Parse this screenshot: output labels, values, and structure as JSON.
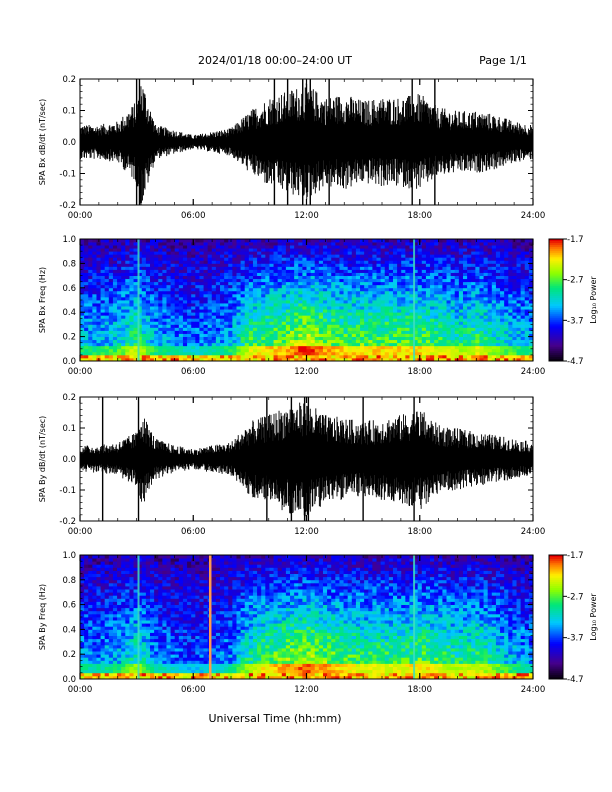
{
  "header": {
    "date_range": "2024/01/18  00:00–24:00 UT",
    "page": "Page 1/1"
  },
  "xaxis": {
    "label": "Universal Time (hh:mm)",
    "ticks": [
      "00:00",
      "06:00",
      "12:00",
      "18:00",
      "24:00"
    ],
    "range_hours": [
      0,
      24
    ]
  },
  "colorbar": {
    "label": "Log₁₀ Power",
    "ticks": [
      "-1.7",
      "-2.7",
      "-3.7",
      "-4.7"
    ],
    "range": [
      -4.7,
      -1.7
    ]
  },
  "chart_data": [
    {
      "type": "line",
      "panel": "bx_waveform",
      "ylabel": "SPA Bx dB/dt (nT/sec)",
      "ylim": [
        -0.2,
        0.2
      ],
      "yticks": [
        "0.2",
        "0.1",
        "0.0",
        "-0.1",
        "-0.2"
      ],
      "xlim": [
        0,
        24
      ],
      "envelope": {
        "x": [
          0,
          1,
          2,
          3,
          3.2,
          4,
          5,
          6,
          7,
          8,
          9,
          10,
          11,
          12,
          13,
          14,
          15,
          16,
          17,
          18,
          19,
          20,
          21,
          22,
          23,
          24
        ],
        "amplitude": [
          0.05,
          0.05,
          0.06,
          0.12,
          0.2,
          0.05,
          0.035,
          0.02,
          0.03,
          0.04,
          0.09,
          0.13,
          0.15,
          0.17,
          0.13,
          0.14,
          0.12,
          0.13,
          0.13,
          0.14,
          0.1,
          0.09,
          0.09,
          0.08,
          0.06,
          0.05
        ]
      },
      "spikes_hours": [
        3.0,
        3.15,
        10.3,
        11.0,
        11.8,
        12.2,
        13.2,
        17.6,
        18.8
      ]
    },
    {
      "type": "heatmap",
      "panel": "bx_spectrogram",
      "ylabel": "SPA Bx Freq (Hz)",
      "ylim": [
        0.0,
        1.0
      ],
      "yticks": [
        "1.0",
        "0.8",
        "0.6",
        "0.4",
        "0.2",
        "0.0"
      ],
      "xlim": [
        0,
        24
      ],
      "activity": {
        "x": [
          0,
          1,
          2,
          3,
          4,
          5,
          6,
          7,
          8,
          9,
          10,
          11,
          12,
          13,
          14,
          15,
          16,
          17,
          18,
          19,
          20,
          21,
          22,
          23,
          24
        ],
        "level": [
          0.35,
          0.35,
          0.4,
          0.55,
          0.35,
          0.3,
          0.25,
          0.3,
          0.35,
          0.55,
          0.6,
          0.65,
          0.75,
          0.65,
          0.6,
          0.6,
          0.6,
          0.6,
          0.6,
          0.55,
          0.5,
          0.55,
          0.45,
          0.4,
          0.35
        ]
      },
      "vertical_lines_hours": [
        3.1,
        17.7
      ]
    },
    {
      "type": "line",
      "panel": "by_waveform",
      "ylabel": "SPA By dB/dt (nT/sec)",
      "ylim": [
        -0.2,
        0.2
      ],
      "yticks": [
        "0.2",
        "0.1",
        "0.0",
        "-0.1",
        "-0.2"
      ],
      "xlim": [
        0,
        24
      ],
      "envelope": {
        "x": [
          0,
          1,
          2,
          3,
          3.2,
          4,
          5,
          6,
          7,
          8,
          9,
          10,
          11,
          12,
          13,
          14,
          15,
          16,
          17,
          18,
          19,
          20,
          21,
          22,
          23,
          24
        ],
        "amplitude": [
          0.04,
          0.04,
          0.05,
          0.08,
          0.15,
          0.06,
          0.04,
          0.03,
          0.04,
          0.05,
          0.11,
          0.13,
          0.16,
          0.17,
          0.13,
          0.12,
          0.11,
          0.12,
          0.13,
          0.15,
          0.1,
          0.09,
          0.08,
          0.07,
          0.06,
          0.05
        ]
      },
      "spikes_hours": [
        1.2,
        3.1,
        9.9,
        11.2,
        11.9,
        12.1,
        15.0,
        17.7
      ]
    },
    {
      "type": "heatmap",
      "panel": "by_spectrogram",
      "ylabel": "SPA By Freq (Hz)",
      "ylim": [
        0.0,
        1.0
      ],
      "yticks": [
        "1.0",
        "0.8",
        "0.6",
        "0.4",
        "0.2",
        "0.0"
      ],
      "xlim": [
        0,
        24
      ],
      "activity": {
        "x": [
          0,
          1,
          2,
          3,
          4,
          5,
          6,
          7,
          8,
          9,
          10,
          11,
          12,
          13,
          14,
          15,
          16,
          17,
          18,
          19,
          20,
          21,
          22,
          23,
          24
        ],
        "level": [
          0.3,
          0.3,
          0.35,
          0.5,
          0.3,
          0.25,
          0.2,
          0.25,
          0.3,
          0.5,
          0.6,
          0.65,
          0.7,
          0.65,
          0.6,
          0.55,
          0.55,
          0.55,
          0.6,
          0.55,
          0.5,
          0.55,
          0.45,
          0.35,
          0.3
        ]
      },
      "vertical_lines_hours": [
        3.1,
        17.7
      ],
      "orange_line_hours": 6.9
    }
  ]
}
